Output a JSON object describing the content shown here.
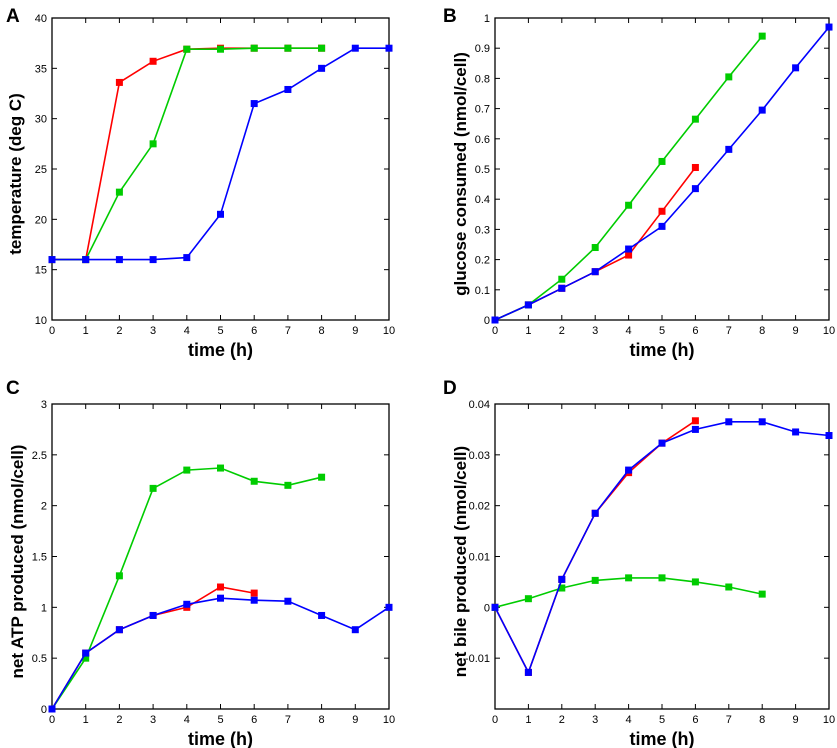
{
  "chart_data": [
    {
      "type": "line",
      "panel": "A",
      "xlabel": "time (h)",
      "ylabel": "temperature (deg C)",
      "xlim": [
        0,
        10
      ],
      "ylim": [
        10,
        40
      ],
      "xticks": [
        0,
        1,
        2,
        3,
        4,
        5,
        6,
        7,
        8,
        9,
        10
      ],
      "yticks": [
        10,
        15,
        20,
        25,
        30,
        35,
        40
      ],
      "series": [
        {
          "name": "red",
          "color": "#ff0000",
          "x": [
            0,
            1,
            2,
            3,
            4,
            5,
            6,
            7,
            8
          ],
          "y": [
            16,
            16,
            33.6,
            35.7,
            36.9,
            37,
            37,
            37,
            37
          ]
        },
        {
          "name": "green",
          "color": "#00cc00",
          "x": [
            0,
            1,
            2,
            3,
            4,
            5,
            6,
            7,
            8
          ],
          "y": [
            16,
            16,
            22.7,
            27.5,
            36.9,
            36.9,
            37,
            37,
            37
          ]
        },
        {
          "name": "blue",
          "color": "#0000ff",
          "x": [
            0,
            1,
            2,
            3,
            4,
            5,
            6,
            7,
            8,
            9,
            10
          ],
          "y": [
            16,
            16,
            16,
            16,
            16.2,
            20.5,
            31.5,
            32.9,
            35,
            37,
            37
          ]
        }
      ]
    },
    {
      "type": "line",
      "panel": "B",
      "xlabel": "time (h)",
      "ylabel": "glucose consumed (nmol/cell)",
      "xlim": [
        0,
        10
      ],
      "ylim": [
        0,
        1
      ],
      "xticks": [
        0,
        1,
        2,
        3,
        4,
        5,
        6,
        7,
        8,
        9,
        10
      ],
      "yticks": [
        "0",
        "0.1",
        "0.2",
        "0.3",
        "0.4",
        "0.5",
        "0.6",
        "0.7",
        "0.8",
        "0.9",
        "1"
      ],
      "series": [
        {
          "name": "red",
          "color": "#ff0000",
          "x": [
            0,
            1,
            2,
            3,
            4,
            5,
            6
          ],
          "y": [
            0,
            0.05,
            0.105,
            0.16,
            0.215,
            0.36,
            0.505
          ]
        },
        {
          "name": "green",
          "color": "#00cc00",
          "x": [
            0,
            1,
            2,
            3,
            4,
            5,
            6,
            7,
            8
          ],
          "y": [
            0,
            0.05,
            0.135,
            0.24,
            0.38,
            0.525,
            0.665,
            0.805,
            0.94
          ]
        },
        {
          "name": "blue",
          "color": "#0000ff",
          "x": [
            0,
            1,
            2,
            3,
            4,
            5,
            6,
            7,
            8,
            9,
            10
          ],
          "y": [
            0,
            0.05,
            0.105,
            0.16,
            0.235,
            0.31,
            0.435,
            0.565,
            0.695,
            0.835,
            0.97
          ]
        }
      ]
    },
    {
      "type": "line",
      "panel": "C",
      "xlabel": "time (h)",
      "ylabel": "net ATP produced (nmol/cell)",
      "xlim": [
        0,
        10
      ],
      "ylim": [
        0,
        3
      ],
      "xticks": [
        0,
        1,
        2,
        3,
        4,
        5,
        6,
        7,
        8,
        9,
        10
      ],
      "yticks": [
        "0",
        "0.5",
        "1",
        "1.5",
        "2",
        "2.5",
        "3"
      ],
      "series": [
        {
          "name": "red",
          "color": "#ff0000",
          "x": [
            0,
            1,
            2,
            3,
            4,
            5,
            6
          ],
          "y": [
            0,
            0.55,
            0.78,
            0.92,
            1.0,
            1.2,
            1.14
          ]
        },
        {
          "name": "green",
          "color": "#00cc00",
          "x": [
            0,
            1,
            2,
            3,
            4,
            5,
            6,
            7,
            8
          ],
          "y": [
            0,
            0.5,
            1.31,
            2.17,
            2.35,
            2.37,
            2.24,
            2.2,
            2.28
          ]
        },
        {
          "name": "blue",
          "color": "#0000ff",
          "x": [
            0,
            1,
            2,
            3,
            4,
            5,
            6,
            7,
            8,
            9,
            10
          ],
          "y": [
            0,
            0.55,
            0.78,
            0.92,
            1.03,
            1.09,
            1.07,
            1.06,
            0.92,
            0.78,
            1.0
          ]
        }
      ]
    },
    {
      "type": "line",
      "panel": "D",
      "xlabel": "time (h)",
      "ylabel": "net bile produced (nmol/cell)",
      "xlim": [
        0,
        10
      ],
      "ylim": [
        -0.02,
        0.04
      ],
      "xticks": [
        0,
        1,
        2,
        3,
        4,
        5,
        6,
        7,
        8,
        9,
        10
      ],
      "yticks": [
        "-0.01",
        "0",
        "0.01",
        "0.02",
        "0.03",
        "0.04"
      ],
      "series": [
        {
          "name": "red",
          "color": "#ff0000",
          "x": [
            0,
            1,
            2,
            3,
            4,
            5,
            6
          ],
          "y": [
            0,
            -0.0128,
            0.0055,
            0.0185,
            0.0265,
            0.0323,
            0.0367
          ]
        },
        {
          "name": "green",
          "color": "#00cc00",
          "x": [
            0,
            1,
            2,
            3,
            4,
            5,
            6,
            7,
            8
          ],
          "y": [
            0,
            0.0017,
            0.0038,
            0.0053,
            0.0058,
            0.0058,
            0.005,
            0.004,
            0.0026
          ]
        },
        {
          "name": "blue",
          "color": "#0000ff",
          "x": [
            0,
            1,
            2,
            3,
            4,
            5,
            6,
            7,
            8,
            9,
            10
          ],
          "y": [
            0,
            -0.0128,
            0.0055,
            0.0185,
            0.027,
            0.0323,
            0.035,
            0.0365,
            0.0365,
            0.0345,
            0.0338
          ]
        }
      ]
    }
  ]
}
